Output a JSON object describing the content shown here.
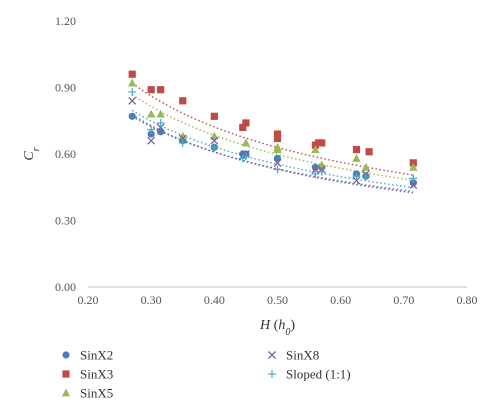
{
  "chart_data": {
    "type": "scatter",
    "title": "",
    "xlabel": "H",
    "xlabel_sub": "h",
    "xlabel_sub_index": "0",
    "ylabel": "C",
    "ylabel_sub": "r",
    "xlim": [
      0.2,
      0.8
    ],
    "ylim": [
      0.0,
      1.2
    ],
    "x_ticks": [
      "0.20",
      "0.30",
      "0.40",
      "0.50",
      "0.60",
      "0.70",
      "0.80"
    ],
    "y_ticks": [
      "0.00",
      "0.30",
      "0.60",
      "0.90",
      "1.20"
    ],
    "grid": false,
    "legend_position": "bottom",
    "series": [
      {
        "name": "SinX2",
        "marker": "circle",
        "color": "#4a7ebb",
        "x": [
          0.27,
          0.3,
          0.315,
          0.35,
          0.4,
          0.445,
          0.45,
          0.5,
          0.56,
          0.57,
          0.625,
          0.64,
          0.715
        ],
        "y": [
          0.77,
          0.69,
          0.7,
          0.66,
          0.63,
          0.6,
          0.6,
          0.58,
          0.54,
          0.54,
          0.51,
          0.5,
          0.47
        ],
        "trend": {
          "type": "power",
          "a": 0.353,
          "b": -0.595
        }
      },
      {
        "name": "SinX3",
        "marker": "square",
        "color": "#be4b48",
        "x": [
          0.27,
          0.3,
          0.315,
          0.35,
          0.4,
          0.445,
          0.45,
          0.5,
          0.5,
          0.56,
          0.565,
          0.57,
          0.625,
          0.645,
          0.715
        ],
        "y": [
          0.96,
          0.89,
          0.89,
          0.84,
          0.77,
          0.72,
          0.74,
          0.69,
          0.67,
          0.64,
          0.65,
          0.65,
          0.62,
          0.61,
          0.56
        ],
        "trend": {
          "type": "power",
          "a": 0.411,
          "b": -0.615
        }
      },
      {
        "name": "SinX5",
        "marker": "triangle",
        "color": "#98b954",
        "x": [
          0.27,
          0.3,
          0.315,
          0.35,
          0.4,
          0.45,
          0.5,
          0.5,
          0.56,
          0.57,
          0.625,
          0.64,
          0.715
        ],
        "y": [
          0.92,
          0.78,
          0.78,
          0.68,
          0.68,
          0.65,
          0.63,
          0.62,
          0.62,
          0.55,
          0.58,
          0.54,
          0.54
        ],
        "trend": {
          "type": "power",
          "a": 0.393,
          "b": -0.605
        }
      },
      {
        "name": "SinX8",
        "marker": "x",
        "color": "#7d60a0",
        "x": [
          0.27,
          0.3,
          0.315,
          0.35,
          0.4,
          0.445,
          0.45,
          0.5,
          0.56,
          0.57,
          0.625,
          0.64,
          0.715
        ],
        "y": [
          0.84,
          0.66,
          0.72,
          0.67,
          0.66,
          0.59,
          0.6,
          0.56,
          0.53,
          0.53,
          0.48,
          0.51,
          0.46
        ],
        "trend": {
          "type": "power",
          "a": 0.345,
          "b": -0.62
        }
      },
      {
        "name": "Sloped (1:1)",
        "marker": "plus",
        "color": "#4bacc6",
        "x": [
          0.27,
          0.3,
          0.315,
          0.35,
          0.4,
          0.445,
          0.45,
          0.5,
          0.56,
          0.57,
          0.625,
          0.64,
          0.715
        ],
        "y": [
          0.88,
          0.71,
          0.74,
          0.65,
          0.63,
          0.58,
          0.59,
          0.53,
          0.51,
          0.52,
          0.5,
          0.5,
          0.49
        ],
        "trend": {
          "type": "power",
          "a": 0.368,
          "b": -0.59
        }
      }
    ]
  }
}
